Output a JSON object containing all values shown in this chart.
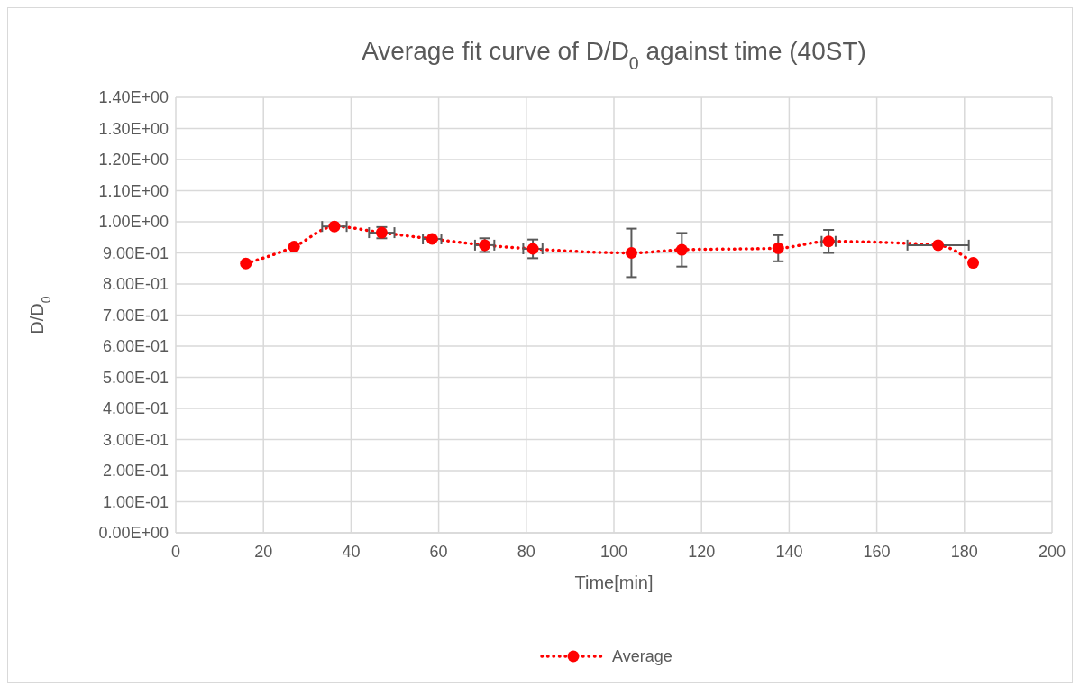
{
  "chart_data": {
    "type": "line",
    "title": "Average fit curve of D/D$_{0}$  against time (40ST)",
    "xlabel": "Time[min]",
    "ylabel": "D/D$_{0}$",
    "series": [
      {
        "name": "Average",
        "color": "#ff0000",
        "x": [
          16,
          27,
          36.2,
          47,
          58.5,
          70.5,
          81.5,
          104,
          115.5,
          137.5,
          149,
          174,
          182
        ],
        "values": [
          0.866,
          0.92,
          0.985,
          0.965,
          0.945,
          0.925,
          0.913,
          0.9,
          0.91,
          0.915,
          0.937,
          0.925,
          0.868
        ],
        "errors": [
          null,
          null,
          null,
          0.018,
          null,
          0.022,
          0.03,
          0.078,
          0.054,
          0.042,
          0.037,
          null,
          null
        ],
        "xerrors": [
          null,
          null,
          2.8,
          2.9,
          2.1,
          2.2,
          2.2,
          null,
          null,
          null,
          1.6,
          7,
          null
        ]
      }
    ],
    "xlim": [
      0,
      200
    ],
    "xticks": [
      0,
      20,
      40,
      60,
      80,
      100,
      120,
      140,
      160,
      180,
      200
    ],
    "ylim": [
      0,
      1.4
    ],
    "yticks": [
      {
        "value": 0,
        "label": "0.00E+00"
      },
      {
        "value": 0.1,
        "label": "1.00E-01"
      },
      {
        "value": 0.2,
        "label": "2.00E-01"
      },
      {
        "value": 0.3,
        "label": "3.00E-01"
      },
      {
        "value": 0.4,
        "label": "4.00E-01"
      },
      {
        "value": 0.5,
        "label": "5.00E-01"
      },
      {
        "value": 0.6,
        "label": "6.00E-01"
      },
      {
        "value": 0.7,
        "label": "7.00E-01"
      },
      {
        "value": 0.8,
        "label": "8.00E-01"
      },
      {
        "value": 0.9,
        "label": "9.00E-01"
      },
      {
        "value": 1,
        "label": "1.00E+00"
      },
      {
        "value": 1.1,
        "label": "1.10E+00"
      },
      {
        "value": 1.2,
        "label": "1.20E+00"
      },
      {
        "value": 1.3,
        "label": "1.30E+00"
      },
      {
        "value": 1.4,
        "label": "1.40E+00"
      }
    ],
    "grid": true,
    "legend": "bottom",
    "marker": "circle",
    "line_style": "dotted"
  }
}
